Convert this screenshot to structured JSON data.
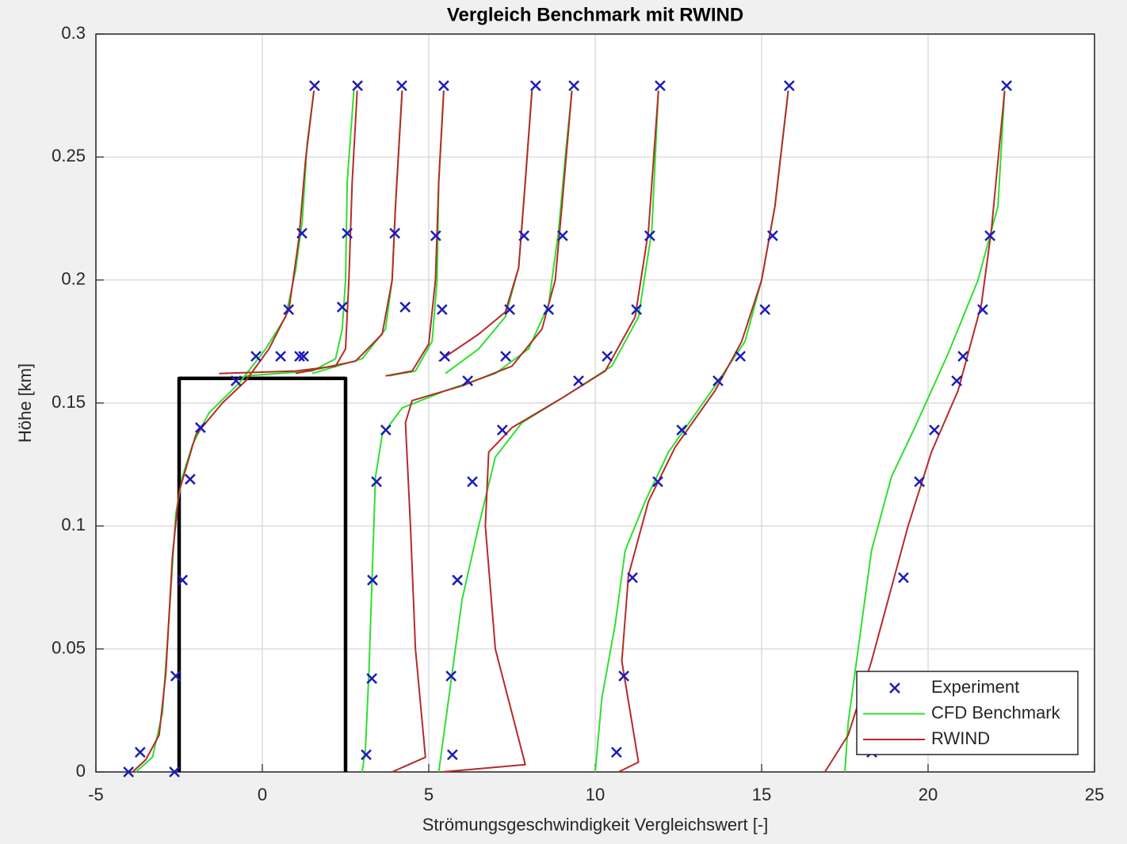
{
  "chart_data": {
    "type": "line",
    "title": "Vergleich Benchmark mit RWIND",
    "xlabel": "Strömungsgeschwindigkeit Vergleichswert [-]",
    "ylabel": "Höhe [km]",
    "xlim": [
      -5,
      25
    ],
    "ylim": [
      0,
      0.3
    ],
    "xticks": [
      -5,
      0,
      5,
      10,
      15,
      20,
      25
    ],
    "yticks": [
      0,
      0.05,
      0.1,
      0.15,
      0.2,
      0.25,
      0.3
    ],
    "grid": true,
    "legend": "lower right",
    "series": [
      {
        "name": "Experiment",
        "type": "scatter",
        "color": "#1c1cb8",
        "x": [
          -4.02,
          -2.64,
          -3.67,
          -2.6,
          -2.4,
          -2.17,
          -1.86,
          -0.79,
          -0.19,
          0.79,
          1.19,
          1.57,
          0.55,
          1.12,
          1.24,
          2.4,
          2.55,
          2.86,
          3.12,
          3.29,
          3.31,
          3.43,
          3.71,
          4.29,
          3.98,
          4.19,
          5.71,
          5.67,
          5.86,
          6.31,
          6.17,
          5.48,
          5.4,
          5.21,
          5.45,
          7.21,
          7.31,
          7.43,
          7.86,
          8.21,
          9.5,
          10.36,
          8.6,
          9.02,
          9.36,
          10.64,
          10.86,
          11.12,
          11.88,
          12.6,
          13.69,
          14.36,
          11.24,
          11.64,
          11.95,
          15.1,
          15.33,
          15.83,
          18.31,
          19.26,
          19.74,
          20.19,
          20.86,
          21.05,
          21.64,
          21.86,
          22.36
        ],
        "y": [
          0,
          0,
          0.008,
          0.039,
          0.078,
          0.119,
          0.14,
          0.159,
          0.169,
          0.188,
          0.219,
          0.279,
          0.169,
          0.169,
          0.169,
          0.189,
          0.219,
          0.279,
          0.007,
          0.038,
          0.078,
          0.118,
          0.139,
          0.189,
          0.219,
          0.279,
          0.007,
          0.039,
          0.078,
          0.118,
          0.159,
          0.169,
          0.188,
          0.218,
          0.279,
          0.139,
          0.169,
          0.188,
          0.218,
          0.279,
          0.159,
          0.169,
          0.188,
          0.218,
          0.279,
          0.008,
          0.039,
          0.079,
          0.118,
          0.139,
          0.159,
          0.169,
          0.188,
          0.218,
          0.279,
          0.188,
          0.218,
          0.279,
          0.008,
          0.079,
          0.118,
          0.139,
          0.159,
          0.169,
          0.188,
          0.218,
          0.279
        ]
      },
      {
        "name": "CFD Benchmark",
        "type": "line",
        "color": "#2ee02e",
        "x": [
          -3.8,
          -3.3,
          -3.0,
          -2.8,
          -2.6,
          -2.4,
          -2.1,
          -1.6,
          -0.7,
          0.1,
          0.7,
          1.0,
          1.2,
          1.35,
          1.55,
          null,
          -0.5,
          1.5,
          2.2,
          2.4,
          2.5,
          2.55,
          2.75,
          null,
          3.0,
          3.1,
          3.2,
          3.3,
          3.4,
          3.6,
          4.2,
          5.5,
          7.0,
          8.0,
          8.6,
          8.9,
          9.1,
          9.3,
          null,
          5.3,
          5.6,
          6.0,
          6.5,
          7.0,
          7.8,
          9.0,
          10.5,
          11.3,
          11.7,
          11.9,
          null,
          10.0,
          10.2,
          10.6,
          10.9,
          11.5,
          12.2,
          13.5,
          14.5,
          15.0,
          15.4,
          15.8,
          null,
          17.5,
          17.6,
          17.9,
          18.3,
          18.9,
          19.6,
          20.6,
          21.5,
          22.1,
          22.3,
          null,
          1.5,
          3.0,
          3.7,
          3.9,
          4.0,
          4.2,
          null,
          3.8,
          4.6,
          5.1,
          5.25,
          5.3,
          5.45,
          null,
          5.5,
          6.5,
          7.3,
          7.7,
          7.9,
          8.1
        ],
        "y": [
          0,
          0.006,
          0.024,
          0.063,
          0.105,
          0.12,
          0.133,
          0.146,
          0.158,
          0.172,
          0.185,
          0.204,
          0.224,
          0.256,
          0.277,
          null,
          0.161,
          0.163,
          0.168,
          0.18,
          0.2,
          0.24,
          0.277,
          null,
          0,
          0.01,
          0.04,
          0.08,
          0.12,
          0.137,
          0.148,
          0.155,
          0.162,
          0.172,
          0.19,
          0.22,
          0.25,
          0.277,
          null,
          0,
          0.03,
          0.07,
          0.1,
          0.128,
          0.142,
          0.152,
          0.165,
          0.185,
          0.22,
          0.277,
          null,
          0,
          0.03,
          0.06,
          0.09,
          0.11,
          0.13,
          0.155,
          0.175,
          0.2,
          0.23,
          0.277,
          null,
          0,
          0.02,
          0.05,
          0.09,
          0.12,
          0.14,
          0.17,
          0.2,
          0.23,
          0.277,
          null,
          0.162,
          0.168,
          0.18,
          0.2,
          0.23,
          0.277,
          null,
          0.161,
          0.163,
          0.175,
          0.2,
          0.24,
          0.277,
          null,
          0.162,
          0.172,
          0.185,
          0.205,
          0.24,
          0.277
        ]
      },
      {
        "name": "RWIND",
        "type": "line",
        "color": "#b52a2a",
        "x": [
          -3.9,
          -3.5,
          -3.1,
          -2.9,
          -2.7,
          -2.5,
          -2.0,
          -1.2,
          -0.5,
          0.2,
          0.8,
          1.1,
          1.3,
          1.55,
          null,
          -1.3,
          1.0,
          2.2,
          2.5,
          2.6,
          2.7,
          2.85,
          null,
          3.9,
          4.9,
          4.6,
          4.45,
          4.3,
          4.5,
          6.0,
          7.5,
          8.4,
          8.8,
          9.0,
          9.3,
          null,
          5.4,
          7.9,
          7.0,
          6.7,
          6.8,
          7.5,
          9.0,
          10.3,
          11.2,
          11.6,
          11.9,
          null,
          10.7,
          11.3,
          10.8,
          11.0,
          11.6,
          12.4,
          13.6,
          14.4,
          15.0,
          15.4,
          15.8,
          null,
          16.9,
          17.6,
          18.3,
          18.9,
          19.4,
          20.1,
          20.9,
          21.6,
          21.9,
          22.3,
          null,
          1.0,
          2.8,
          3.6,
          3.9,
          4.0,
          4.2,
          null,
          3.7,
          4.5,
          5.0,
          5.2,
          5.3,
          5.45,
          null,
          5.3,
          6.5,
          7.3,
          7.7,
          7.9,
          8.1
        ],
        "y": [
          0,
          0.005,
          0.015,
          0.04,
          0.088,
          0.114,
          0.137,
          0.15,
          0.159,
          0.172,
          0.188,
          0.217,
          0.249,
          0.277,
          null,
          0.162,
          0.163,
          0.165,
          0.172,
          0.2,
          0.24,
          0.277,
          null,
          0,
          0.006,
          0.05,
          0.1,
          0.142,
          0.151,
          0.157,
          0.165,
          0.18,
          0.2,
          0.23,
          0.277,
          null,
          0,
          0.003,
          0.05,
          0.1,
          0.13,
          0.14,
          0.152,
          0.163,
          0.185,
          0.22,
          0.277,
          null,
          0,
          0.004,
          0.045,
          0.08,
          0.11,
          0.132,
          0.155,
          0.175,
          0.2,
          0.23,
          0.277,
          null,
          0,
          0.015,
          0.045,
          0.075,
          0.1,
          0.13,
          0.155,
          0.19,
          0.22,
          0.277,
          null,
          0.162,
          0.167,
          0.178,
          0.2,
          0.23,
          0.277,
          null,
          0.161,
          0.163,
          0.174,
          0.2,
          0.24,
          0.277,
          null,
          0.167,
          0.178,
          0.187,
          0.205,
          0.24,
          0.277
        ]
      }
    ],
    "building": {
      "type": "line",
      "color": "#000000",
      "x": [
        -2.5,
        -2.5,
        2.5,
        2.5
      ],
      "y": [
        0,
        0.16,
        0.16,
        0
      ]
    }
  }
}
